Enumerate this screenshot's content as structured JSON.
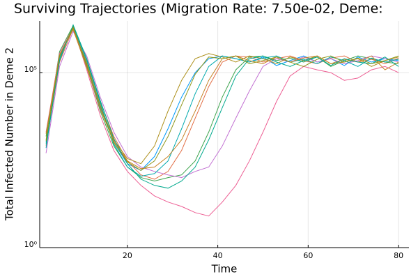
{
  "chart_data": {
    "type": "line",
    "title": "Surviving Trajectories (Migration Rate: 7.50e-02, Deme:",
    "x_label": "Time",
    "y_label": "Total Infected Number in Deme 2",
    "log_y": true,
    "grid": true,
    "xlim": [
      0.6,
      82.3
    ],
    "ylim": [
      1,
      3000000
    ],
    "xticks": [
      20,
      40,
      60,
      80
    ],
    "yticks": [
      {
        "value": 1,
        "label": "10⁰"
      },
      {
        "value": 100000,
        "label": "10⁵"
      }
    ],
    "x": [
      2,
      5,
      8,
      11,
      14,
      17,
      20,
      23,
      26,
      29,
      32,
      35,
      38,
      41,
      44,
      47,
      50,
      53,
      56,
      59,
      62,
      65,
      68,
      71,
      74,
      77,
      80
    ],
    "series": [
      {
        "color": "#009af9",
        "values": [
          1000,
          300000,
          2000000,
          160000,
          10000,
          1000,
          250,
          160,
          400,
          2500,
          20000,
          100000,
          250000,
          300000,
          250000,
          200000,
          280000,
          160000,
          220000,
          300000,
          200000,
          250000,
          160000,
          280000,
          200000,
          250000,
          220000
        ]
      },
      {
        "color": "#e26f46",
        "values": [
          800,
          200000,
          1800000,
          200000,
          15000,
          1500,
          300,
          120,
          90,
          150,
          600,
          5000,
          40000,
          200000,
          300000,
          280000,
          200000,
          250000,
          300000,
          220000,
          180000,
          260000,
          300000,
          200000,
          240000,
          180000,
          260000
        ]
      },
      {
        "color": "#3da44d",
        "values": [
          1500,
          400000,
          2200000,
          150000,
          8000,
          800,
          200,
          100,
          80,
          100,
          120,
          300,
          2000,
          20000,
          120000,
          280000,
          300000,
          220000,
          260000,
          200000,
          280000,
          150000,
          220000,
          300000,
          250000,
          200000,
          180000
        ]
      },
      {
        "color": "#c271d2",
        "values": [
          500,
          150000,
          1500000,
          300000,
          20000,
          2000,
          400,
          200,
          150,
          120,
          100,
          150,
          200,
          800,
          5000,
          30000,
          150000,
          250000,
          200000,
          280000,
          200000,
          250000,
          180000,
          220000,
          300000,
          250000,
          200000
        ]
      },
      {
        "color": "#ed5e93",
        "values": [
          2000,
          350000,
          2000000,
          120000,
          6000,
          600,
          150,
          60,
          30,
          20,
          15,
          10,
          8,
          20,
          60,
          300,
          2000,
          15000,
          80000,
          150000,
          120000,
          100000,
          60000,
          70000,
          120000,
          150000,
          100000
        ]
      },
      {
        "color": "#ac8e18",
        "values": [
          1200,
          280000,
          1900000,
          180000,
          12000,
          1200,
          350,
          250,
          800,
          8000,
          60000,
          250000,
          350000,
          280000,
          200000,
          300000,
          250000,
          180000,
          280000,
          220000,
          300000,
          180000,
          200000,
          250000,
          150000,
          220000,
          280000
        ]
      },
      {
        "color": "#00a9ad",
        "values": [
          700,
          250000,
          2100000,
          220000,
          14000,
          900,
          200,
          110,
          130,
          300,
          2500,
          25000,
          150000,
          300000,
          250000,
          200000,
          260000,
          300000,
          200000,
          240000,
          180000,
          280000,
          220000,
          150000,
          260000,
          200000,
          240000
        ]
      },
      {
        "color": "#c68225",
        "values": [
          1800,
          320000,
          1700000,
          140000,
          9000,
          1100,
          300,
          180,
          200,
          400,
          1200,
          8000,
          60000,
          250000,
          300000,
          220000,
          180000,
          280000,
          200000,
          260000,
          300000,
          180000,
          240000,
          200000,
          300000,
          120000,
          200000
        ]
      },
      {
        "color": "#00a98d",
        "values": [
          900,
          220000,
          2300000,
          250000,
          16000,
          1300,
          250,
          90,
          60,
          50,
          80,
          200,
          1200,
          10000,
          80000,
          250000,
          300000,
          200000,
          150000,
          220000,
          280000,
          160000,
          250000,
          200000,
          180000,
          280000,
          150000
        ]
      },
      {
        "color": "#8e971d",
        "values": [
          1100,
          300000,
          2000000,
          170000,
          11000,
          1000,
          280,
          160,
          300,
          1500,
          12000,
          90000,
          280000,
          250000,
          300000,
          180000,
          220000,
          280000,
          200000,
          150000,
          240000,
          300000,
          200000,
          260000,
          180000,
          220000,
          300000
        ]
      }
    ]
  }
}
